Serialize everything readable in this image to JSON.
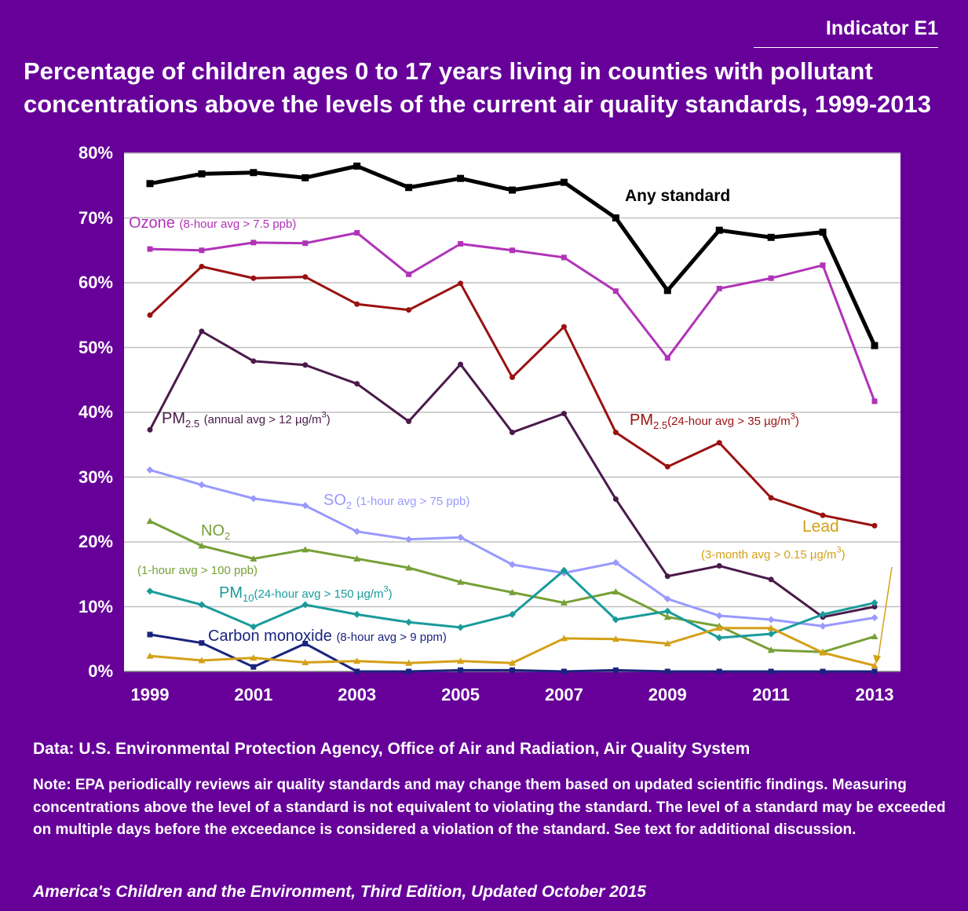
{
  "header": {
    "indicator": "Indicator E1",
    "title": "Percentage of children ages 0 to 17 years living in counties with pollutant concentrations above the levels of the current air quality standards, 1999-2013"
  },
  "chart_data": {
    "type": "line",
    "x": [
      1999,
      2000,
      2001,
      2002,
      2003,
      2004,
      2005,
      2006,
      2007,
      2008,
      2009,
      2010,
      2011,
      2012,
      2013
    ],
    "x_tick_labels": [
      "1999",
      "2001",
      "2003",
      "2005",
      "2007",
      "2009",
      "2011",
      "2013"
    ],
    "y_tick_labels": [
      "0%",
      "10%",
      "20%",
      "30%",
      "40%",
      "50%",
      "60%",
      "70%",
      "80%"
    ],
    "ylim": [
      0,
      80
    ],
    "grid": "horizontal",
    "series": [
      {
        "key": "any",
        "color": "#000000",
        "marker": "square",
        "values": [
          75.3,
          76.8,
          77.0,
          76.2,
          78.0,
          74.7,
          76.1,
          74.3,
          75.5,
          70.0,
          58.8,
          68.1,
          67.0,
          67.8,
          50.3
        ]
      },
      {
        "key": "ozone",
        "color": "#b033b8",
        "marker": "square",
        "values": [
          65.2,
          65.0,
          66.2,
          66.1,
          67.7,
          61.3,
          66.0,
          65.0,
          63.9,
          58.7,
          48.4,
          59.1,
          60.7,
          62.7,
          41.7
        ]
      },
      {
        "key": "pm25_24",
        "color": "#9a1111",
        "marker": "circle",
        "values": [
          55.0,
          62.5,
          60.7,
          60.9,
          56.7,
          55.8,
          59.9,
          45.4,
          53.2,
          36.9,
          31.6,
          35.3,
          26.8,
          24.1,
          22.5
        ]
      },
      {
        "key": "pm25_annual",
        "color": "#4a1a4a",
        "marker": "circle",
        "values": [
          37.3,
          52.5,
          47.9,
          47.3,
          44.4,
          38.6,
          47.4,
          36.9,
          39.8,
          26.6,
          14.7,
          16.3,
          14.2,
          8.4,
          10.0
        ]
      },
      {
        "key": "so2",
        "color": "#9999ff",
        "marker": "diamond",
        "values": [
          31.1,
          28.8,
          26.7,
          25.6,
          21.6,
          20.4,
          20.7,
          16.5,
          15.2,
          16.8,
          11.2,
          8.6,
          8.0,
          7.0,
          8.3
        ]
      },
      {
        "key": "no2",
        "color": "#77a037",
        "marker": "triangle",
        "values": [
          23.2,
          19.4,
          17.4,
          18.8,
          17.4,
          16.0,
          13.8,
          12.2,
          10.6,
          12.3,
          8.4,
          7.0,
          3.3,
          3.0,
          5.4
        ]
      },
      {
        "key": "pm10",
        "color": "#1a9b9b",
        "marker": "diamond",
        "values": [
          12.4,
          10.3,
          6.9,
          10.3,
          8.8,
          7.6,
          6.8,
          8.8,
          15.6,
          8.0,
          9.3,
          5.2,
          5.8,
          8.8,
          10.6
        ]
      },
      {
        "key": "co",
        "color": "#1a237e",
        "marker": "square",
        "values": [
          5.7,
          4.4,
          0.7,
          4.3,
          0.0,
          0.0,
          0.2,
          0.2,
          0.0,
          0.2,
          0.0,
          0.0,
          0.0,
          0.0,
          0.0
        ]
      },
      {
        "key": "lead",
        "color": "#d4a017",
        "marker": "triangle",
        "values": [
          2.4,
          1.7,
          2.1,
          1.4,
          1.6,
          1.3,
          1.6,
          1.3,
          5.1,
          5.0,
          4.3,
          6.7,
          6.7,
          2.9,
          0.9
        ]
      }
    ],
    "labels": {
      "any": "Any standard",
      "ozone_name": "Ozone",
      "ozone_std": "(8-hour avg > 7.5 ppb)",
      "pm_prefix": "PM",
      "pm25_sub": "2.5",
      "pm10_sub": "10",
      "so2_sub": "2",
      "pm25_24_std": "(24-hour avg > 35 µg/m",
      "pm25_annual_std": "(annual avg > 12 µg/m",
      "cubed": "3",
      "close": ")",
      "so2_prefix": "SO",
      "so2_std": "(1-hour avg > 75 ppb)",
      "no2_prefix": "NO",
      "no2_sub": "2",
      "no2_std": "(1-hour avg > 100 ppb)",
      "pm10_std": "(24-hour avg > 150 µg/m",
      "co_name": "Carbon monoxide",
      "co_std": "(8-hour avg > 9 ppm)",
      "lead_name": "Lead",
      "lead_std": "(3-month avg > 0.15 µg/m"
    }
  },
  "footer": {
    "source": "Data: U.S. Environmental Protection Agency, Office of Air and Radiation, Air Quality System",
    "note": "Note: EPA periodically reviews air quality standards  and may change them based on updated scientific findings. Measuring concentrations above the level of a standard is not equivalent to violating the standard. The level of a standard may be exceeded on multiple days before the exceedance is considered a violation of the standard. See text for additional discussion.",
    "credit": "America's Children and the Environment, Third Edition, Updated October 2015"
  }
}
